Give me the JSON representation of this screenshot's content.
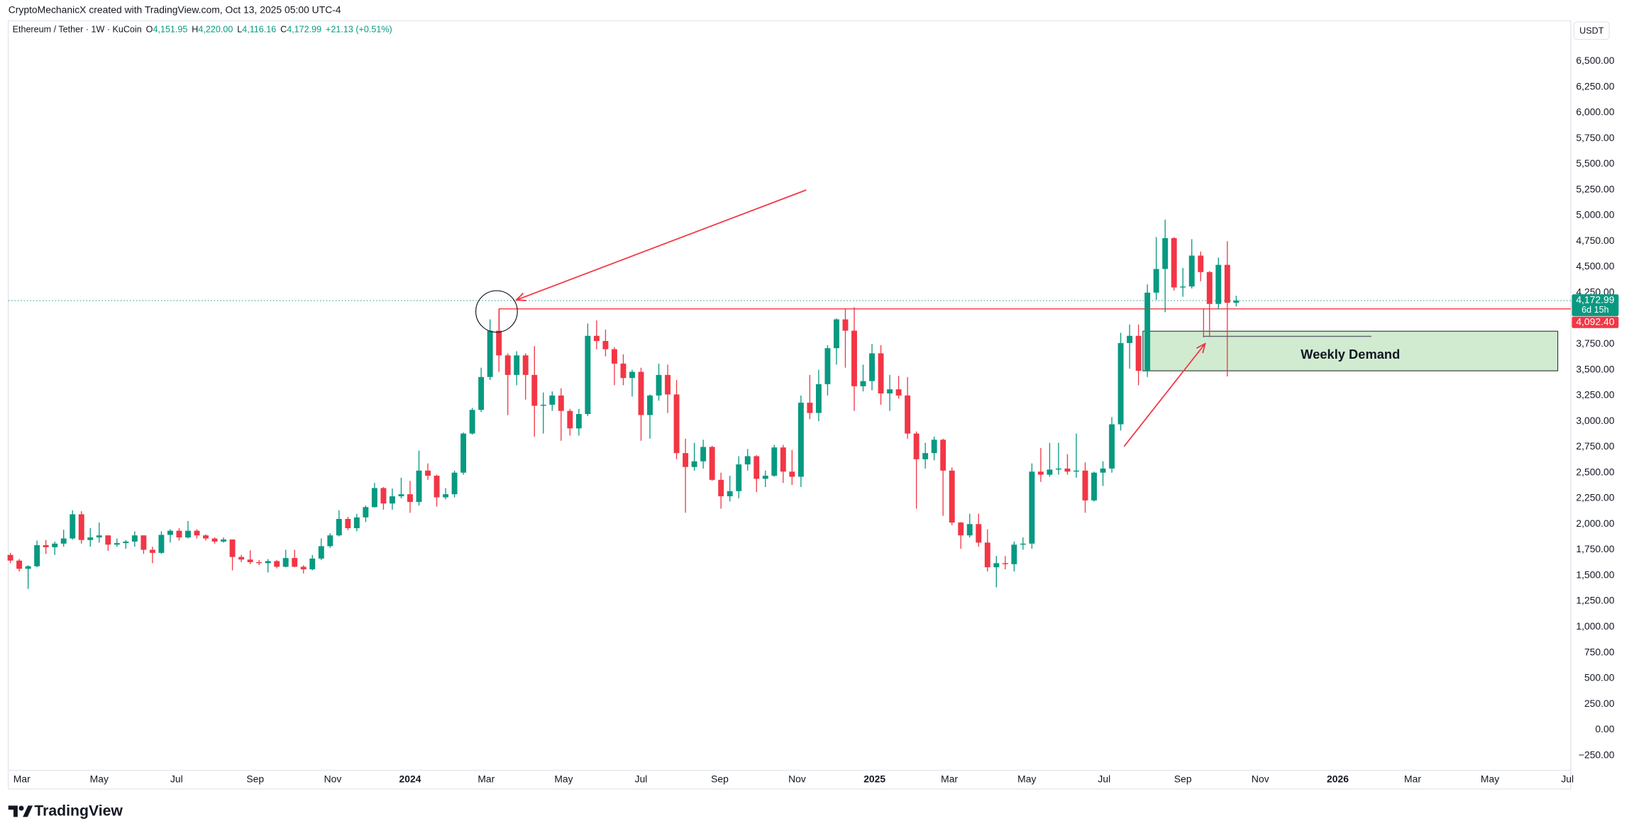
{
  "header": {
    "credit": "CryptoMechanicX created with TradingView.com, Oct 13, 2025 05:00 UTC-4",
    "symbol": "Ethereum / Tether · 1W · KuCoin",
    "ohlc": [
      {
        "key": "O",
        "value": "4,151.95"
      },
      {
        "key": "H",
        "value": "4,220.00"
      },
      {
        "key": "L",
        "value": "4,116.16"
      },
      {
        "key": "C",
        "value": "4,172.99"
      }
    ],
    "change": "+21.13 (+0.51%)",
    "logo": "TradingView"
  },
  "chart_data": {
    "type": "candlestick",
    "currency": "USDT",
    "up_color": "#089981",
    "down_color": "#f23645",
    "open": [
      1700,
      1645,
      1565,
      1590,
      1795,
      1775,
      1810,
      1860,
      2095,
      1845,
      1870,
      1890,
      1800,
      1815,
      1830,
      1890,
      1750,
      1720,
      1895,
      1935,
      1870,
      1935,
      1890,
      1860,
      1830,
      1850,
      1680,
      1655,
      1630,
      1620,
      1640,
      1585,
      1670,
      1585,
      1560,
      1665,
      1785,
      1890,
      2050,
      1960,
      2065,
      2165,
      2350,
      2200,
      2270,
      2290,
      2215,
      2520,
      2470,
      2260,
      2290,
      2500,
      2880,
      3110,
      3430,
      3880,
      3640,
      3450,
      3640,
      3450,
      3150,
      3160,
      3250,
      3100,
      2930,
      3070,
      3830,
      3780,
      3700,
      3560,
      3420,
      3480,
      3060,
      3250,
      3450,
      3260,
      2690,
      2555,
      2610,
      2750,
      2430,
      2270,
      2320,
      2580,
      2660,
      2440,
      2470,
      2745,
      2510,
      2460,
      3180,
      3080,
      3360,
      3710,
      3990,
      3880,
      3340,
      3390,
      3660,
      3270,
      3310,
      3250,
      2880,
      2630,
      2690,
      2820,
      2520,
      2015,
      1890,
      2000,
      1820,
      1580,
      1620,
      1610,
      1800,
      1810,
      2510,
      2480,
      2530,
      2540,
      2510,
      2520,
      2230,
      2500,
      2540,
      2970,
      3760,
      3830,
      3490,
      4250,
      4480,
      4780,
      4300,
      4310,
      4610,
      4450,
      4140,
      4520,
      4151.95
    ],
    "high": [
      1720,
      1660,
      1600,
      1840,
      1845,
      1830,
      1945,
      2135,
      2125,
      1960,
      2015,
      1890,
      1860,
      1845,
      1930,
      1890,
      1780,
      1930,
      1950,
      1960,
      2030,
      1950,
      1900,
      1870,
      1870,
      1850,
      1700,
      1745,
      1650,
      1660,
      1650,
      1750,
      1750,
      1600,
      1700,
      1860,
      1910,
      2135,
      2070,
      2100,
      2180,
      2400,
      2360,
      2345,
      2450,
      2420,
      2715,
      2590,
      2480,
      2350,
      2520,
      2890,
      3130,
      3520,
      3990,
      4092.4,
      3660,
      3680,
      3660,
      3730,
      3280,
      3290,
      3320,
      3120,
      3120,
      3950,
      3980,
      3890,
      3720,
      3650,
      3500,
      3520,
      3260,
      3560,
      3550,
      3400,
      2830,
      2790,
      2820,
      2760,
      2500,
      2470,
      2660,
      2730,
      2670,
      2520,
      2770,
      2770,
      2720,
      3250,
      3450,
      3500,
      3740,
      4000,
      4090,
      4110,
      3550,
      3750,
      3740,
      3450,
      3440,
      3430,
      2900,
      2790,
      2850,
      2830,
      2550,
      2020,
      2100,
      2100,
      1950,
      1690,
      1690,
      1830,
      1870,
      2590,
      2740,
      2790,
      2790,
      2680,
      2880,
      2600,
      2510,
      2610,
      3040,
      3860,
      3940,
      3940,
      4330,
      4790,
      4960,
      4790,
      4490,
      4770,
      4650,
      4460,
      4590,
      4750,
      4220
    ],
    "low": [
      1620,
      1540,
      1370,
      1580,
      1710,
      1700,
      1780,
      1850,
      1810,
      1780,
      1820,
      1740,
      1780,
      1760,
      1780,
      1710,
      1620,
      1710,
      1820,
      1840,
      1860,
      1860,
      1840,
      1810,
      1820,
      1550,
      1630,
      1610,
      1600,
      1530,
      1570,
      1580,
      1580,
      1520,
      1550,
      1650,
      1770,
      1880,
      1940,
      1930,
      2020,
      2160,
      2140,
      2140,
      2250,
      2110,
      2180,
      2430,
      2170,
      2240,
      2260,
      2480,
      2870,
      3090,
      3400,
      3480,
      3060,
      3350,
      3210,
      2850,
      2880,
      3100,
      2810,
      2860,
      2860,
      3050,
      3700,
      3630,
      3350,
      3350,
      3240,
      2810,
      2830,
      3200,
      3080,
      2630,
      2110,
      2520,
      2540,
      2420,
      2150,
      2220,
      2250,
      2520,
      2310,
      2360,
      2460,
      2400,
      2380,
      2360,
      3020,
      3000,
      3250,
      3550,
      3520,
      3100,
      3290,
      3300,
      3160,
      3100,
      3220,
      2830,
      2150,
      2540,
      2620,
      2080,
      1990,
      1760,
      1870,
      1780,
      1540,
      1385,
      1560,
      1540,
      1750,
      1760,
      2410,
      2460,
      2480,
      2480,
      2450,
      2110,
      2220,
      2370,
      2500,
      2910,
      3510,
      3350,
      3430,
      4180,
      4060,
      4270,
      4210,
      4290,
      4360,
      3820,
      4090,
      3435,
      4116.16
    ],
    "close": [
      1645,
      1565,
      1590,
      1795,
      1775,
      1810,
      1860,
      2095,
      1845,
      1870,
      1890,
      1800,
      1815,
      1830,
      1890,
      1750,
      1720,
      1895,
      1935,
      1870,
      1935,
      1890,
      1860,
      1830,
      1850,
      1680,
      1655,
      1630,
      1620,
      1640,
      1585,
      1670,
      1585,
      1560,
      1665,
      1785,
      1890,
      2050,
      1960,
      2065,
      2165,
      2350,
      2200,
      2270,
      2290,
      2215,
      2520,
      2470,
      2260,
      2290,
      2500,
      2880,
      3110,
      3430,
      3880,
      3640,
      3450,
      3640,
      3450,
      3150,
      3160,
      3250,
      3100,
      2930,
      3070,
      3830,
      3780,
      3700,
      3560,
      3420,
      3480,
      3060,
      3250,
      3450,
      3260,
      2690,
      2555,
      2610,
      2750,
      2430,
      2270,
      2320,
      2580,
      2660,
      2440,
      2470,
      2745,
      2510,
      2460,
      3180,
      3080,
      3360,
      3710,
      3990,
      3880,
      3340,
      3390,
      3660,
      3270,
      3310,
      3250,
      2880,
      2630,
      2690,
      2820,
      2520,
      2015,
      1890,
      2000,
      1820,
      1580,
      1620,
      1610,
      1800,
      1810,
      2510,
      2480,
      2530,
      2540,
      2510,
      2520,
      2230,
      2500,
      2540,
      2970,
      3760,
      3830,
      3490,
      4250,
      4480,
      4780,
      4300,
      4310,
      4610,
      4450,
      4140,
      4520,
      4152,
      4172.99
    ],
    "xlim": [
      -0.23,
      175.67
    ],
    "xticks": [
      {
        "value": 1.29,
        "label": "Mar"
      },
      {
        "value": 10.0,
        "label": "May"
      },
      {
        "value": 18.71,
        "label": "Jul"
      },
      {
        "value": 27.57,
        "label": "Sep"
      },
      {
        "value": 36.29,
        "label": "Nov"
      },
      {
        "value": 45,
        "label": "2024"
      },
      {
        "value": 53.57,
        "label": "Mar"
      },
      {
        "value": 62.29,
        "label": "May"
      },
      {
        "value": 71.0,
        "label": "Jul"
      },
      {
        "value": 79.86,
        "label": "Sep"
      },
      {
        "value": 88.57,
        "label": "Nov"
      },
      {
        "value": 97.29,
        "label": "2025"
      },
      {
        "value": 105.71,
        "label": "Mar"
      },
      {
        "value": 114.43,
        "label": "May"
      },
      {
        "value": 123.14,
        "label": "Jul"
      },
      {
        "value": 132.0,
        "label": "Sep"
      },
      {
        "value": 140.71,
        "label": "Nov"
      },
      {
        "value": 149.43,
        "label": "2026"
      },
      {
        "value": 157.86,
        "label": "Mar"
      },
      {
        "value": 166.57,
        "label": "May"
      },
      {
        "value": 175.29,
        "label": "Jul"
      }
    ],
    "ylim": [
      -393.6,
      6893
    ],
    "yticks": [
      {
        "value": -250,
        "label": "−250.00"
      },
      {
        "value": 0,
        "label": "0.00"
      },
      {
        "value": 250,
        "label": "250.00"
      },
      {
        "value": 500,
        "label": "500.00"
      },
      {
        "value": 750,
        "label": "750.00"
      },
      {
        "value": 1000,
        "label": "1,000.00"
      },
      {
        "value": 1250,
        "label": "1,250.00"
      },
      {
        "value": 1500,
        "label": "1,500.00"
      },
      {
        "value": 1750,
        "label": "1,750.00"
      },
      {
        "value": 2000,
        "label": "2,000.00"
      },
      {
        "value": 2250,
        "label": "2,250.00"
      },
      {
        "value": 2500,
        "label": "2,500.00"
      },
      {
        "value": 2750,
        "label": "2,750.00"
      },
      {
        "value": 3000,
        "label": "3,000.00"
      },
      {
        "value": 3250,
        "label": "3,250.00"
      },
      {
        "value": 3500,
        "label": "3,500.00"
      },
      {
        "value": 3750,
        "label": "3,750.00"
      },
      {
        "value": 4250,
        "label": "4,250.00"
      },
      {
        "value": 4500,
        "label": "4,500.00"
      },
      {
        "value": 4750,
        "label": "4,750.00"
      },
      {
        "value": 5000,
        "label": "5,000.00"
      },
      {
        "value": 5250,
        "label": "5,250.00"
      },
      {
        "value": 5500,
        "label": "5,500.00"
      },
      {
        "value": 5750,
        "label": "5,750.00"
      },
      {
        "value": 6000,
        "label": "6,000.00"
      },
      {
        "value": 6250,
        "label": "6,250.00"
      },
      {
        "value": 6500,
        "label": "6,500.00"
      }
    ],
    "grid": false,
    "last_price": {
      "value": 4172.99,
      "label": "4,172.99"
    },
    "countdown": "6d 15h",
    "level": {
      "value": 4092.4,
      "label": "4,092.40"
    },
    "zone": {
      "label": "Weekly Demand",
      "low": 3490,
      "high": 3875,
      "x": [
        127.5,
        174.2
      ]
    }
  }
}
